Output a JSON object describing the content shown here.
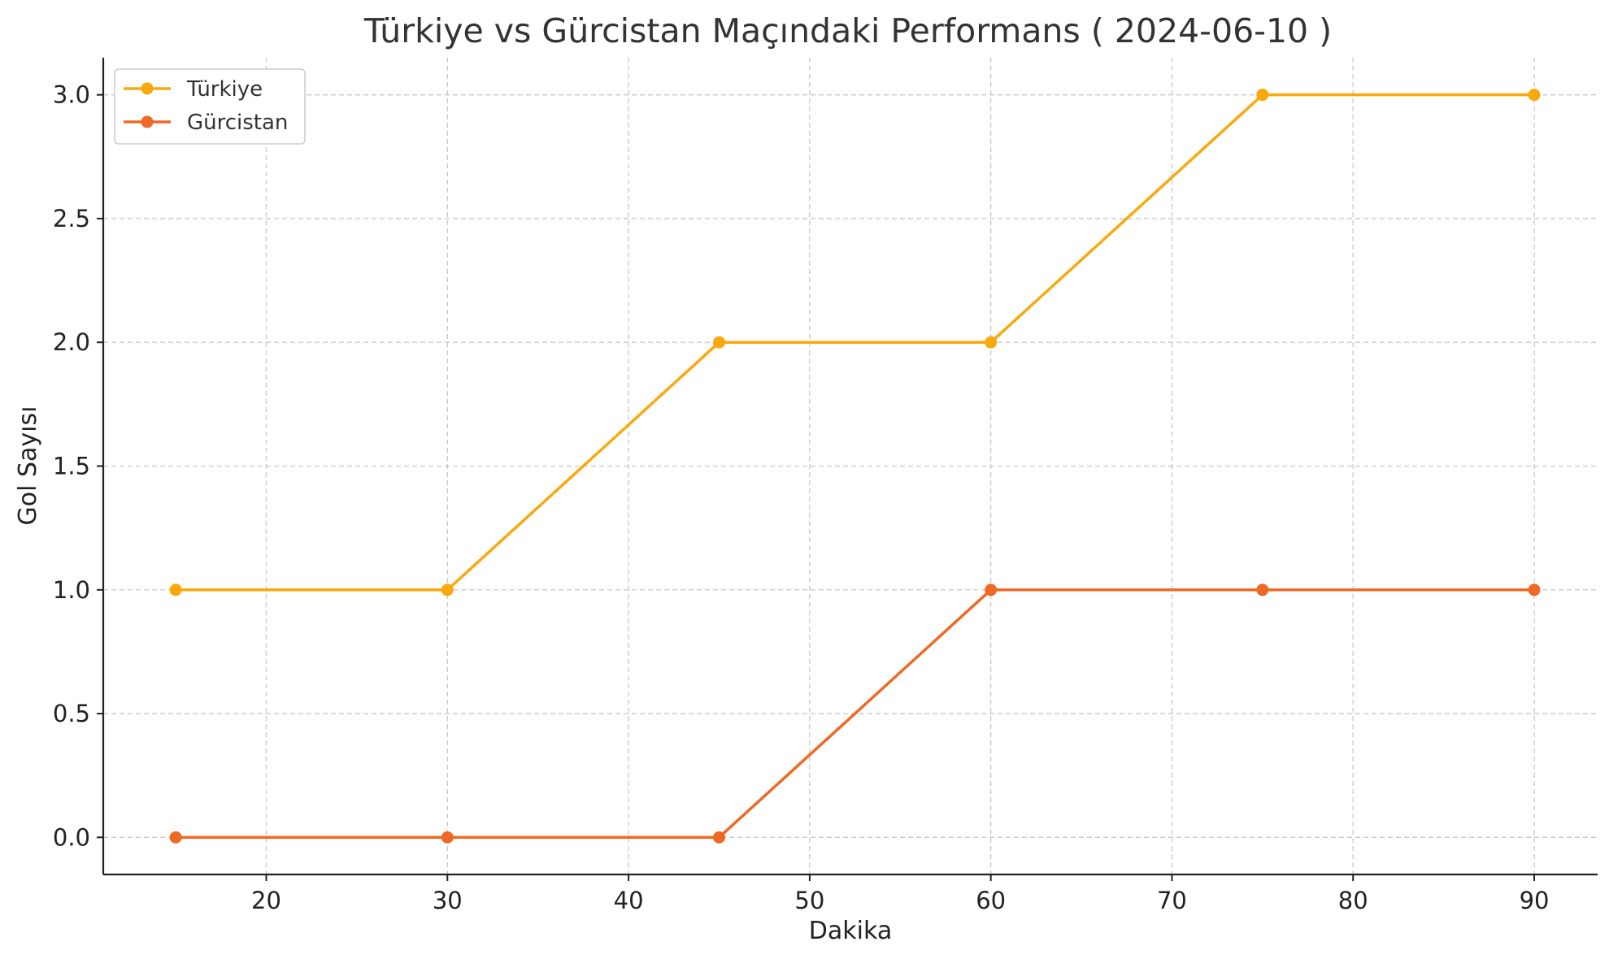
{
  "chart_data": {
    "type": "line",
    "title": "Türkiye vs Gürcistan Maçındaki Performans ( 2024-06-10 )",
    "xlabel": "Dakika",
    "ylabel": "Gol Sayısı",
    "xlim": [
      11,
      93.5
    ],
    "ylim": [
      -0.15,
      3.15
    ],
    "xticks": [
      20,
      30,
      40,
      50,
      60,
      70,
      80,
      90
    ],
    "yticks": [
      0.0,
      0.5,
      1.0,
      1.5,
      2.0,
      2.5,
      3.0
    ],
    "x": [
      15,
      30,
      45,
      60,
      75,
      90
    ],
    "grid": true,
    "legend_position": "top-left",
    "series": [
      {
        "name": "Türkiye",
        "color": "#F9A90E",
        "values": [
          1,
          1,
          2,
          2,
          3,
          3
        ]
      },
      {
        "name": "Gürcistan",
        "color": "#EE6A24",
        "values": [
          0,
          0,
          0,
          1,
          1,
          1
        ]
      }
    ]
  }
}
